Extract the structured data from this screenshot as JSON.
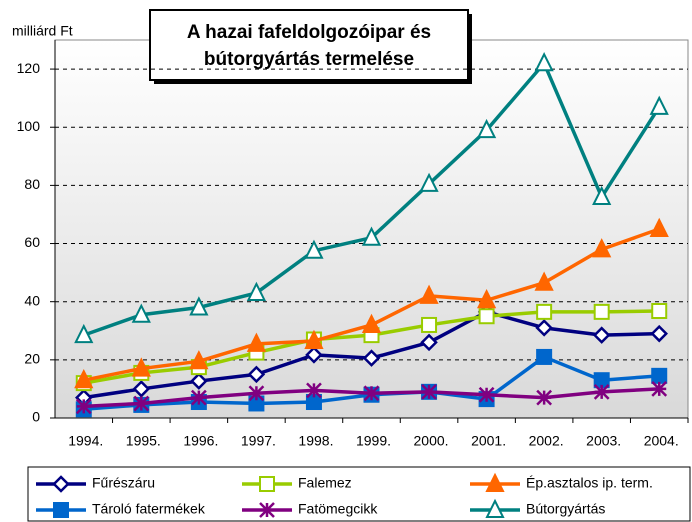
{
  "chart_data": {
    "type": "line",
    "title": [
      "A hazai fafeldolgozóipar és",
      "bútorgyártás termelése"
    ],
    "y_label": "milliárd Ft",
    "categories": [
      "1994.",
      "1995.",
      "1996.",
      "1997.",
      "1998.",
      "1999.",
      "2000.",
      "2001.",
      "2002.",
      "2003.",
      "2004."
    ],
    "ylim": [
      0,
      130
    ],
    "yticks": [
      0,
      20,
      40,
      60,
      80,
      100,
      120
    ],
    "grid": true,
    "series": [
      {
        "name": "Fűrészáru",
        "color": "#000080",
        "marker": "diamond",
        "values": [
          7,
          10,
          12.7,
          15,
          21.7,
          20.6,
          26,
          36.5,
          31,
          28.5,
          29
        ]
      },
      {
        "name": "Falemez",
        "color": "#99cc00",
        "marker": "square-open",
        "values": [
          12,
          15.5,
          17.5,
          22.5,
          27,
          28.5,
          32,
          35,
          36.5,
          36.5,
          36.8
        ]
      },
      {
        "name": "Ép.asztalos ip. term.",
        "color": "#ff6600",
        "marker": "triangle",
        "values": [
          13,
          17,
          19.5,
          25.5,
          26.5,
          32,
          42,
          40.5,
          46.5,
          58,
          65
        ]
      },
      {
        "name": "Tároló fatermékek",
        "color": "#0066cc",
        "marker": "square",
        "values": [
          3,
          4.5,
          5.5,
          5,
          5.5,
          8,
          9,
          6.5,
          21,
          13,
          14.5
        ]
      },
      {
        "name": "Fatömegcikk",
        "color": "#800080",
        "marker": "star",
        "values": [
          4,
          5,
          7,
          8.5,
          9.5,
          8.5,
          9,
          8,
          7,
          9,
          10
        ]
      },
      {
        "name": "Bútorgyártás",
        "color": "#008080",
        "marker": "triangle-open",
        "values": [
          28.5,
          35.5,
          38,
          43,
          57.5,
          62,
          80.5,
          99,
          122,
          76,
          107
        ]
      }
    ]
  }
}
